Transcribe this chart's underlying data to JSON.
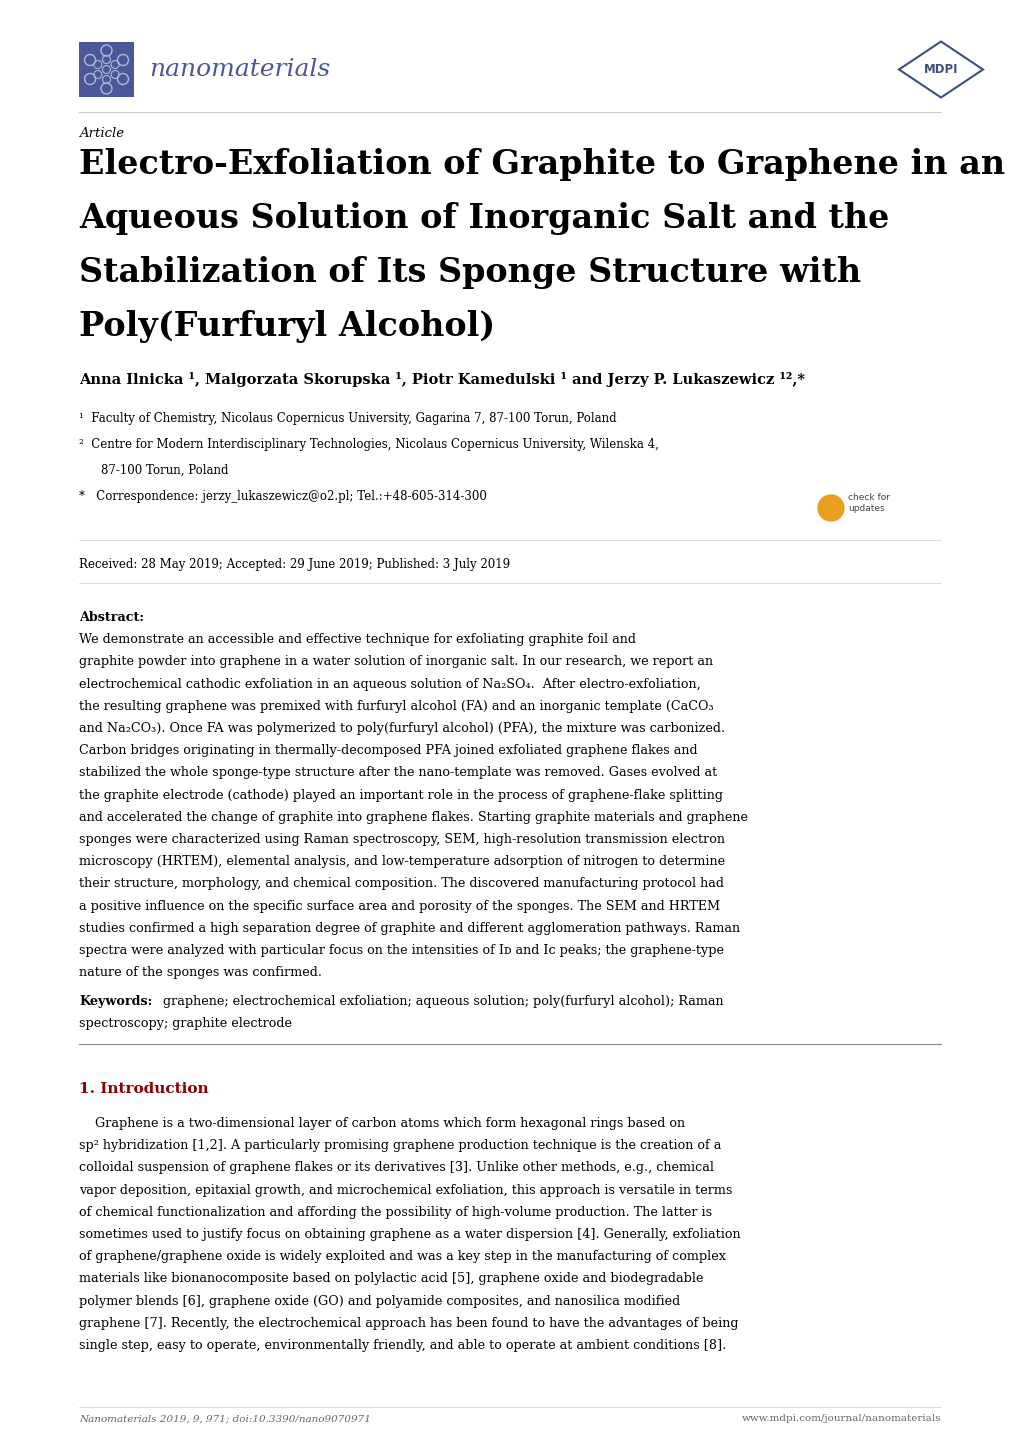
{
  "background_color": "#ffffff",
  "page_width": 10.2,
  "page_height": 14.42,
  "journal_color": "#4a5899",
  "mdpi_color": "#3d4f7c",
  "article_label": "Article",
  "title_line1": "Electro-Exfoliation of Graphite to Graphene in an",
  "title_line2": "Aqueous Solution of Inorganic Salt and the",
  "title_line3": "Stabilization of Its Sponge Structure with",
  "title_line4": "Poly(Furfuryl Alcohol)",
  "received": "Received: 28 May 2019; Accepted: 29 June 2019; Published: 3 July 2019",
  "footer_left": "Nanomaterials 2019, 9, 971; doi:10.3390/nano9070971",
  "footer_right": "www.mdpi.com/journal/nanomaterials",
  "text_color": "#000000",
  "title_color": "#000000",
  "section_color": "#8B0000"
}
